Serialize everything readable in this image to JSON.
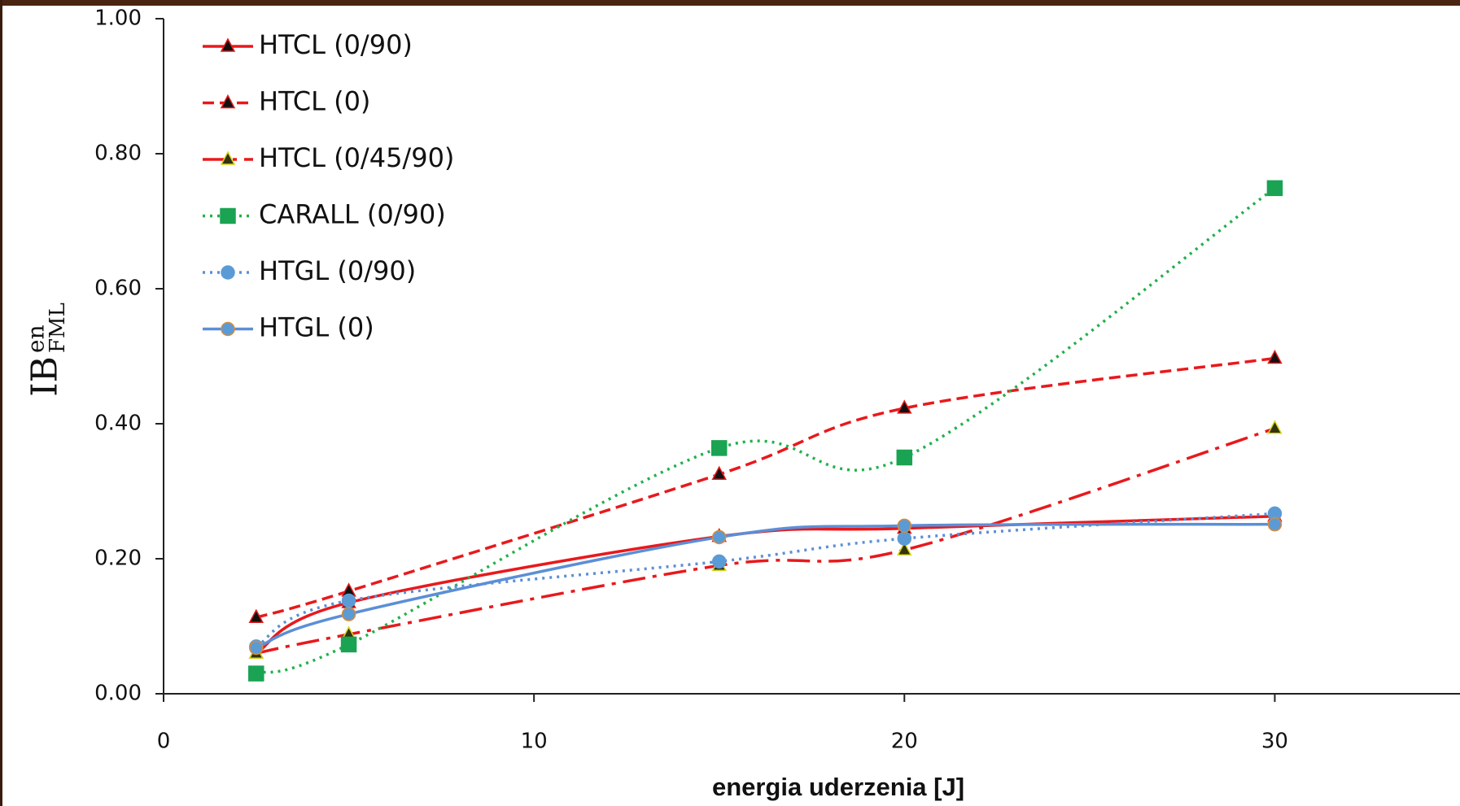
{
  "chart_data": {
    "type": "line",
    "x_label": "energia uderzenia [J]",
    "y_label": {
      "main": "IB",
      "sup": "en",
      "sub": "FML"
    },
    "x": [
      2.5,
      5,
      15,
      20,
      30
    ],
    "xlim": [
      0,
      35
    ],
    "xticks": [
      0,
      10,
      20,
      30
    ],
    "ylim": [
      0,
      1
    ],
    "yticks": [
      {
        "value": 0,
        "label": "0.00"
      },
      {
        "value": 0.2,
        "label": "0.20"
      },
      {
        "value": 0.4,
        "label": "0.40"
      },
      {
        "value": 0.6,
        "label": "0.60"
      },
      {
        "value": 0.8,
        "label": "0.80"
      },
      {
        "value": 1,
        "label": "1.00"
      }
    ],
    "smooth": true,
    "legend": "top-left",
    "series": [
      {
        "name": "HTCL (0/90)",
        "color": "#e8191c",
        "dash": "solid",
        "marker": "triangle",
        "marker_fill": "#111111",
        "marker_edge": "#e8191c",
        "values": [
          0.06,
          0.135,
          0.233,
          0.245,
          0.263
        ]
      },
      {
        "name": "HTCL (0)",
        "color": "#e8191c",
        "dash": "dashed",
        "marker": "triangle",
        "marker_fill": "#111111",
        "marker_edge": "#e8191c",
        "values": [
          0.113,
          0.152,
          0.325,
          0.423,
          0.497
        ]
      },
      {
        "name": "HTCL (0/45/90)",
        "color": "#e8191c",
        "dash": "dashdot",
        "marker": "triangle",
        "marker_fill": "#333311",
        "marker_edge": "#d6d619",
        "values": [
          0.06,
          0.088,
          0.19,
          0.213,
          0.393
        ]
      },
      {
        "name": "CARALL (0/90)",
        "color": "#22b04b",
        "dash": "dotted",
        "marker": "square",
        "marker_fill": "#1aa353",
        "marker_edge": "#1aa353",
        "values": [
          0.03,
          0.073,
          0.364,
          0.35,
          0.749
        ]
      },
      {
        "name": "HTGL (0/90)",
        "color": "#5b8fd6",
        "dash": "dotted",
        "marker": "circle",
        "marker_fill": "#5b9bd5",
        "marker_edge": "#5b9bd5",
        "values": [
          0.07,
          0.138,
          0.196,
          0.23,
          0.267
        ]
      },
      {
        "name": "HTGL (0)",
        "color": "#5b8fd6",
        "dash": "solid",
        "marker": "circle",
        "marker_fill": "#5b9bd5",
        "marker_edge": "#d98b3a",
        "values": [
          0.068,
          0.118,
          0.232,
          0.249,
          0.251
        ]
      }
    ]
  }
}
